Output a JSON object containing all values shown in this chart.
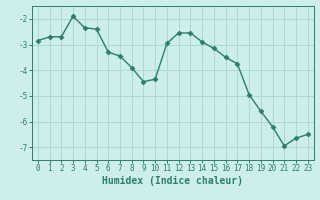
{
  "x": [
    0,
    1,
    2,
    3,
    4,
    5,
    6,
    7,
    8,
    9,
    10,
    11,
    12,
    13,
    14,
    15,
    16,
    17,
    18,
    19,
    20,
    21,
    22,
    23
  ],
  "y": [
    -2.85,
    -2.7,
    -2.7,
    -1.9,
    -2.35,
    -2.4,
    -3.3,
    -3.45,
    -3.9,
    -4.45,
    -4.35,
    -2.95,
    -2.55,
    -2.55,
    -2.9,
    -3.15,
    -3.5,
    -3.75,
    -4.95,
    -5.6,
    -6.2,
    -6.95,
    -6.65,
    -6.5
  ],
  "line_color": "#2e7d6e",
  "marker": "D",
  "marker_size": 2.5,
  "line_width": 1.0,
  "bg_color": "#cceeed",
  "grid_color": "#aed8d5",
  "xlabel": "Humidex (Indice chaleur)",
  "xlim": [
    -0.5,
    23.5
  ],
  "ylim": [
    -7.5,
    -1.5
  ],
  "yticks": [
    -7,
    -6,
    -5,
    -4,
    -3,
    -2
  ],
  "xticks": [
    0,
    1,
    2,
    3,
    4,
    5,
    6,
    7,
    8,
    9,
    10,
    11,
    12,
    13,
    14,
    15,
    16,
    17,
    18,
    19,
    20,
    21,
    22,
    23
  ],
  "tick_label_fontsize": 5.5,
  "xlabel_fontsize": 7.0
}
